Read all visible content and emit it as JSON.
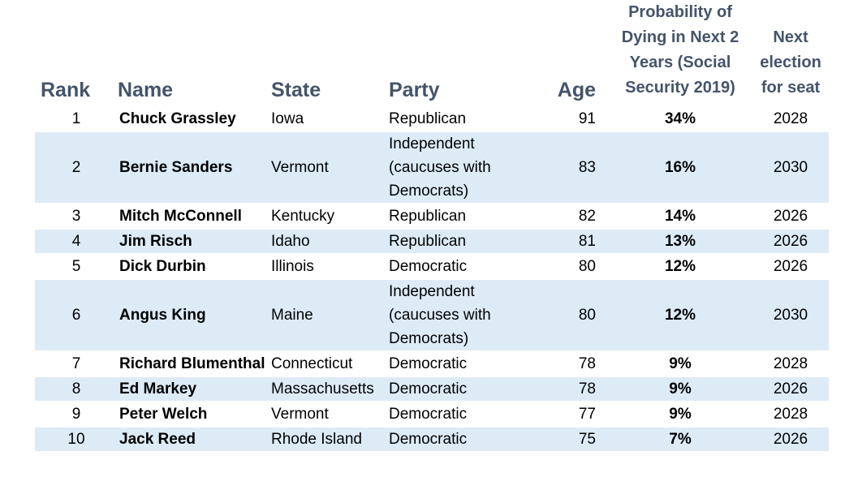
{
  "headers": {
    "rank": "Rank",
    "name": "Name",
    "state": "State",
    "party": "Party",
    "age": "Age",
    "probability": "Probability of Dying in Next 2 Years (Social Security 2019)",
    "next_election": "Next election for seat"
  },
  "rows": [
    {
      "rank": "1",
      "name": "Chuck Grassley",
      "state": "Iowa",
      "party": "Republican",
      "age": "91",
      "probability": "34%",
      "next_election": "2028"
    },
    {
      "rank": "2",
      "name": "Bernie Sanders",
      "state": "Vermont",
      "party": "Independent (caucuses with Democrats)",
      "age": "83",
      "probability": "16%",
      "next_election": "2030"
    },
    {
      "rank": "3",
      "name": "Mitch McConnell",
      "state": "Kentucky",
      "party": "Republican",
      "age": "82",
      "probability": "14%",
      "next_election": "2026"
    },
    {
      "rank": "4",
      "name": "Jim Risch",
      "state": "Idaho",
      "party": "Republican",
      "age": "81",
      "probability": "13%",
      "next_election": "2026"
    },
    {
      "rank": "5",
      "name": "Dick Durbin",
      "state": "Illinois",
      "party": "Democratic",
      "age": "80",
      "probability": "12%",
      "next_election": "2026"
    },
    {
      "rank": "6",
      "name": "Angus King",
      "state": "Maine",
      "party": "Independent (caucuses with Democrats)",
      "age": "80",
      "probability": "12%",
      "next_election": "2030"
    },
    {
      "rank": "7",
      "name": "Richard Blumenthal",
      "state": "Connecticut",
      "party": "Democratic",
      "age": "78",
      "probability": "9%",
      "next_election": "2028"
    },
    {
      "rank": "8",
      "name": "Ed Markey",
      "state": "Massachusetts",
      "party": "Democratic",
      "age": "78",
      "probability": "9%",
      "next_election": "2026"
    },
    {
      "rank": "9",
      "name": "Peter Welch",
      "state": "Vermont",
      "party": "Democratic",
      "age": "77",
      "probability": "9%",
      "next_election": "2028"
    },
    {
      "rank": "10",
      "name": "Jack Reed",
      "state": "Rhode Island",
      "party": "Democratic",
      "age": "75",
      "probability": "7%",
      "next_election": "2026"
    }
  ],
  "colors": {
    "header_text": "#44546a",
    "row_shade": "#ddebf7",
    "header_rule": "#9bc2e6"
  }
}
